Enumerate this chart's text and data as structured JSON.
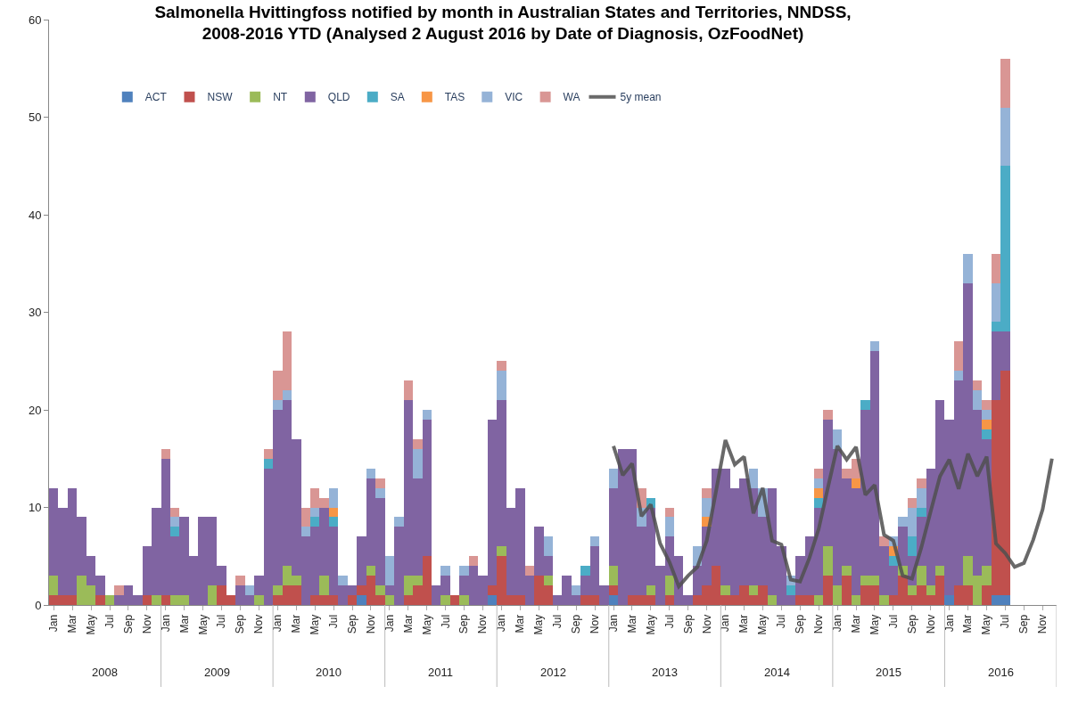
{
  "chart_data": {
    "type": "bar",
    "stacked": true,
    "title": "Salmonella Hvittingfoss notified by month in Australian States and Territories, NNDSS,\n2008-2016 YTD (Analysed 2 August 2016 by Date of Diagnosis, OzFoodNet)",
    "categories": [
      "Jan",
      null,
      "Mar",
      null,
      "May",
      null,
      "Jul",
      null,
      "Sep",
      null,
      "Nov",
      null,
      "Jan",
      null,
      "Mar",
      null,
      "May",
      null,
      "Jul",
      null,
      "Sep",
      null,
      "Nov",
      null,
      "Jan",
      null,
      "Mar",
      null,
      "May",
      null,
      "Jul",
      null,
      "Sep",
      null,
      "Nov",
      null,
      "Jan",
      null,
      "Mar",
      null,
      "May",
      null,
      "Jul",
      null,
      "Sep",
      null,
      "Nov",
      null,
      "Jan",
      null,
      "Mar",
      null,
      "May",
      null,
      "Jul",
      null,
      "Sep",
      null,
      "Nov",
      null,
      "Jan",
      null,
      "Mar",
      null,
      "May",
      null,
      "Jul",
      null,
      "Sep",
      null,
      "Nov",
      null,
      "Jan",
      null,
      "Mar",
      null,
      "May",
      null,
      "Jul",
      null,
      "Sep",
      null,
      "Nov",
      null,
      "Jan",
      null,
      "Mar",
      null,
      "May",
      null,
      "Jul",
      null,
      "Sep",
      null,
      "Nov",
      null,
      "Jan",
      null,
      "Mar",
      null,
      "May",
      null,
      "Jul",
      null,
      "Sep",
      null,
      "Nov",
      null
    ],
    "annotations": [
      "2008",
      "2009",
      "2010",
      "2011",
      "2012",
      "2013",
      "2014",
      "2015",
      "2016"
    ],
    "ylim": [
      0,
      60
    ],
    "yticks": [
      0,
      10,
      20,
      30,
      40,
      50,
      60
    ],
    "legend": "top",
    "series": [
      {
        "name": "ACT",
        "color": "#4f81bd",
        "values": [
          0,
          0,
          0,
          0,
          0,
          0,
          0,
          0,
          0,
          0,
          0,
          0,
          0,
          0,
          0,
          0,
          0,
          0,
          0,
          0,
          0,
          0,
          0,
          0,
          0,
          0,
          0,
          0,
          0,
          0,
          0,
          0,
          0,
          1,
          0,
          0,
          0,
          0,
          0,
          0,
          0,
          0,
          0,
          0,
          0,
          0,
          0,
          1,
          0,
          0,
          0,
          0,
          0,
          0,
          0,
          0,
          0,
          0,
          0,
          0,
          1,
          0,
          0,
          0,
          0,
          0,
          0,
          0,
          0,
          0,
          0,
          0,
          0,
          0,
          0,
          0,
          0,
          0,
          0,
          0,
          0,
          0,
          0,
          0,
          0,
          0,
          0,
          0,
          0,
          0,
          0,
          0,
          0,
          0,
          0,
          0,
          1,
          0,
          0,
          0,
          0,
          1,
          1,
          null,
          null,
          null,
          null,
          null
        ]
      },
      {
        "name": "NSW",
        "color": "#c0504d",
        "values": [
          1,
          1,
          1,
          0,
          0,
          1,
          0,
          0,
          0,
          0,
          1,
          0,
          1,
          0,
          0,
          0,
          0,
          0,
          2,
          1,
          0,
          0,
          0,
          0,
          1,
          2,
          2,
          0,
          1,
          1,
          1,
          0,
          1,
          1,
          3,
          1,
          0,
          0,
          1,
          2,
          5,
          0,
          0,
          1,
          0,
          0,
          0,
          1,
          5,
          1,
          1,
          0,
          3,
          2,
          0,
          0,
          0,
          1,
          1,
          0,
          1,
          0,
          1,
          1,
          1,
          0,
          1,
          0,
          0,
          1,
          2,
          4,
          1,
          1,
          2,
          1,
          2,
          0,
          0,
          0,
          1,
          1,
          0,
          3,
          0,
          3,
          0,
          2,
          2,
          0,
          1,
          3,
          1,
          2,
          1,
          3,
          0,
          2,
          2,
          0,
          2,
          20,
          23,
          null,
          null,
          null,
          null,
          null
        ]
      },
      {
        "name": "NT",
        "color": "#9bbb59",
        "values": [
          2,
          0,
          0,
          3,
          2,
          0,
          1,
          0,
          0,
          0,
          0,
          1,
          0,
          1,
          1,
          0,
          0,
          2,
          0,
          0,
          0,
          0,
          1,
          0,
          1,
          2,
          1,
          0,
          0,
          2,
          0,
          0,
          0,
          0,
          1,
          1,
          1,
          0,
          2,
          1,
          0,
          0,
          1,
          0,
          1,
          0,
          0,
          0,
          1,
          0,
          0,
          0,
          0,
          1,
          0,
          0,
          0,
          0,
          0,
          0,
          2,
          0,
          0,
          0,
          1,
          0,
          2,
          0,
          0,
          0,
          0,
          0,
          1,
          0,
          0,
          1,
          0,
          1,
          0,
          0,
          0,
          0,
          1,
          3,
          2,
          1,
          1,
          1,
          1,
          1,
          0,
          1,
          1,
          2,
          1,
          1,
          0,
          0,
          3,
          3,
          2,
          0,
          0,
          null,
          null,
          null,
          null,
          null
        ]
      },
      {
        "name": "QLD",
        "color": "#8064a2",
        "values": [
          9,
          9,
          11,
          6,
          3,
          2,
          0,
          1,
          2,
          1,
          5,
          9,
          14,
          6,
          8,
          5,
          9,
          7,
          2,
          0,
          2,
          1,
          2,
          14,
          18,
          17,
          14,
          7,
          7,
          7,
          7,
          2,
          1,
          5,
          9,
          9,
          1,
          8,
          18,
          10,
          14,
          2,
          2,
          0,
          2,
          4,
          3,
          17,
          15,
          9,
          11,
          3,
          5,
          2,
          1,
          3,
          1,
          2,
          5,
          2,
          8,
          16,
          15,
          7,
          8,
          4,
          4,
          5,
          1,
          3,
          6,
          10,
          12,
          11,
          11,
          10,
          7,
          11,
          6,
          1,
          4,
          6,
          9,
          13,
          14,
          9,
          11,
          17,
          23,
          5,
          3,
          4,
          3,
          5,
          12,
          17,
          18,
          21,
          28,
          17,
          13,
          7,
          4,
          null,
          null,
          null,
          null,
          null
        ]
      },
      {
        "name": "SA",
        "color": "#4bacc6",
        "values": [
          0,
          0,
          0,
          0,
          0,
          0,
          0,
          0,
          0,
          0,
          0,
          0,
          0,
          1,
          0,
          0,
          0,
          0,
          0,
          0,
          0,
          0,
          0,
          1,
          0,
          0,
          0,
          0,
          1,
          0,
          1,
          0,
          0,
          0,
          0,
          0,
          0,
          0,
          0,
          0,
          0,
          0,
          0,
          0,
          0,
          0,
          0,
          0,
          0,
          0,
          0,
          0,
          0,
          0,
          0,
          0,
          0,
          1,
          0,
          0,
          0,
          0,
          0,
          0,
          1,
          0,
          0,
          0,
          0,
          0,
          0,
          0,
          0,
          0,
          0,
          0,
          0,
          0,
          0,
          1,
          0,
          0,
          1,
          0,
          0,
          0,
          0,
          1,
          0,
          0,
          1,
          0,
          2,
          1,
          0,
          0,
          0,
          0,
          0,
          0,
          1,
          1,
          17,
          null,
          null,
          null,
          null,
          null
        ]
      },
      {
        "name": "TAS",
        "color": "#f79646",
        "values": [
          0,
          0,
          0,
          0,
          0,
          0,
          0,
          0,
          0,
          0,
          0,
          0,
          0,
          0,
          0,
          0,
          0,
          0,
          0,
          0,
          0,
          0,
          0,
          0,
          0,
          0,
          0,
          0,
          0,
          0,
          1,
          0,
          0,
          0,
          0,
          0,
          0,
          0,
          0,
          0,
          0,
          0,
          0,
          0,
          0,
          0,
          0,
          0,
          0,
          0,
          0,
          0,
          0,
          0,
          0,
          0,
          0,
          0,
          0,
          0,
          0,
          0,
          0,
          0,
          0,
          0,
          0,
          0,
          0,
          0,
          1,
          0,
          0,
          0,
          0,
          0,
          0,
          0,
          0,
          0,
          0,
          0,
          1,
          0,
          0,
          0,
          1,
          0,
          0,
          0,
          1,
          0,
          0,
          0,
          0,
          0,
          0,
          0,
          0,
          0,
          1,
          0,
          0,
          null,
          null,
          null,
          null,
          null
        ]
      },
      {
        "name": "VIC",
        "color": "#95b3d7",
        "values": [
          0,
          0,
          0,
          0,
          0,
          0,
          0,
          0,
          0,
          0,
          0,
          0,
          0,
          1,
          0,
          0,
          0,
          0,
          0,
          0,
          0,
          1,
          0,
          0,
          1,
          1,
          0,
          1,
          1,
          0,
          2,
          1,
          0,
          0,
          1,
          1,
          3,
          1,
          0,
          3,
          1,
          0,
          1,
          0,
          1,
          0,
          0,
          0,
          3,
          0,
          0,
          0,
          0,
          2,
          0,
          0,
          1,
          0,
          1,
          0,
          2,
          0,
          0,
          2,
          0,
          0,
          2,
          0,
          0,
          2,
          2,
          0,
          0,
          0,
          0,
          2,
          3,
          0,
          0,
          1,
          0,
          0,
          1,
          0,
          2,
          0,
          0,
          0,
          1,
          0,
          1,
          1,
          3,
          2,
          0,
          0,
          0,
          1,
          3,
          2,
          1,
          4,
          6,
          null,
          null,
          null,
          null,
          null
        ]
      },
      {
        "name": "WA",
        "color": "#d99694",
        "values": [
          0,
          0,
          0,
          0,
          0,
          0,
          0,
          1,
          0,
          0,
          0,
          0,
          1,
          1,
          0,
          0,
          0,
          0,
          0,
          0,
          1,
          0,
          0,
          1,
          3,
          6,
          0,
          2,
          2,
          1,
          0,
          0,
          0,
          0,
          0,
          1,
          0,
          0,
          2,
          1,
          0,
          0,
          0,
          0,
          0,
          1,
          0,
          0,
          1,
          0,
          0,
          1,
          0,
          0,
          0,
          0,
          0,
          0,
          0,
          0,
          0,
          0,
          0,
          2,
          0,
          0,
          1,
          0,
          0,
          0,
          1,
          0,
          0,
          0,
          0,
          0,
          0,
          0,
          0,
          0,
          0,
          0,
          1,
          1,
          0,
          1,
          2,
          0,
          0,
          1,
          0,
          0,
          1,
          1,
          0,
          0,
          0,
          3,
          0,
          1,
          1,
          3,
          5,
          null,
          null,
          null,
          null,
          null
        ]
      },
      {
        "name": "5y mean",
        "type": "line",
        "color": "#505050",
        "marker": "none",
        "line_style": "solid",
        "values": [
          null,
          null,
          null,
          null,
          null,
          null,
          null,
          null,
          null,
          null,
          null,
          null,
          null,
          null,
          null,
          null,
          null,
          null,
          null,
          null,
          null,
          null,
          null,
          null,
          null,
          null,
          null,
          null,
          null,
          null,
          null,
          null,
          null,
          null,
          null,
          null,
          null,
          null,
          null,
          null,
          null,
          null,
          null,
          null,
          null,
          null,
          null,
          null,
          null,
          null,
          null,
          null,
          null,
          null,
          null,
          null,
          null,
          null,
          null,
          null,
          16.3,
          13.3,
          14.5,
          9.1,
          10.3,
          6.3,
          4.4,
          1.9,
          3.0,
          3.9,
          6.6,
          11.7,
          16.9,
          14.4,
          15.2,
          9.4,
          12.0,
          6.6,
          6.2,
          2.6,
          2.4,
          4.8,
          7.8,
          12.1,
          16.3,
          14.9,
          16.2,
          11.3,
          12.3,
          7.2,
          6.6,
          3.0,
          2.7,
          5.9,
          9.6,
          13.2,
          14.9,
          11.9,
          15.5,
          13.2,
          15.2,
          6.3,
          5.3,
          3.9,
          4.3,
          6.7,
          9.8,
          15.0
        ]
      }
    ]
  }
}
